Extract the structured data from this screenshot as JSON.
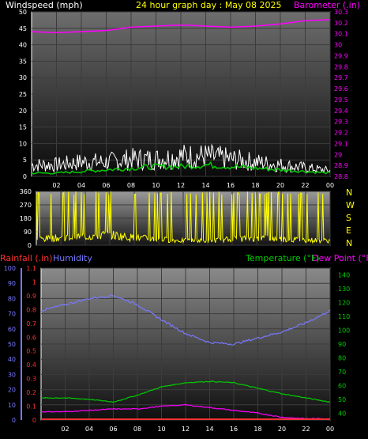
{
  "header": {
    "left_label": "Windspeed (mph)",
    "center_label": "24 hour graph day : May 08 2025",
    "right_label": "Barometer (.in)"
  },
  "colors": {
    "wind": "#ffffff",
    "wind_avg": "#00cc00",
    "barometer": "#ff00ff",
    "direction": "#ffff00",
    "humidity": "#7878ff",
    "temperature": "#00cc00",
    "dewpoint": "#ff00ff",
    "rainfall": "#ff3030",
    "header_center": "#ffff00",
    "axis_text": "#ffffff"
  },
  "bottom_header": {
    "rainfall_label": "Rainfall (.in)",
    "humidity_label": "Humidity",
    "temperature_label": "Temperature (°F)",
    "dewpoint_label": "Dew Point (°F)"
  },
  "direction_letters": [
    "N",
    "W",
    "S",
    "E",
    "N"
  ],
  "chart_data": [
    {
      "type": "line",
      "name": "wind-barometer",
      "x_tick_labels": [
        "02",
        "04",
        "06",
        "08",
        "10",
        "12",
        "14",
        "16",
        "18",
        "20",
        "22",
        "00"
      ],
      "y_left_ticks": [
        0,
        5,
        10,
        15,
        20,
        25,
        30,
        35,
        40,
        45,
        50
      ],
      "ylim_left": [
        0,
        50
      ],
      "y_right_ticks": [
        "28.8",
        "28.9",
        "29",
        "29.1",
        "29.2",
        "29.3",
        "29.4",
        "29.5",
        "29.6",
        "29.7",
        "29.8",
        "29.9",
        "30",
        "30.1",
        "30.2",
        "30.3"
      ],
      "ylim_right": [
        28.8,
        30.3
      ],
      "series": [
        {
          "axis": "right",
          "x": [
            0,
            2,
            4,
            6,
            8,
            10,
            12,
            14,
            16,
            18,
            20,
            22,
            24
          ],
          "values": [
            30.12,
            30.11,
            30.12,
            30.13,
            30.16,
            30.17,
            30.18,
            30.17,
            30.16,
            30.17,
            30.19,
            30.22,
            30.23
          ]
        },
        {
          "axis": "left",
          "x": [
            0,
            2,
            4,
            6,
            8,
            10,
            12,
            14,
            16,
            18,
            20,
            22,
            24
          ],
          "values": [
            4,
            4,
            5,
            5,
            6,
            6,
            7,
            7,
            6,
            5,
            4,
            3,
            2
          ]
        },
        {
          "axis": "left",
          "x": [
            0,
            2,
            4,
            6,
            8,
            10,
            12,
            14,
            16,
            18,
            20,
            22,
            24
          ],
          "values": [
            1,
            1,
            1.5,
            2,
            2.5,
            3,
            3,
            3.5,
            3,
            2.5,
            2,
            1.5,
            1
          ]
        }
      ]
    },
    {
      "type": "scatter",
      "name": "wind-direction",
      "y_left_ticks": [
        0,
        90,
        180,
        270,
        360
      ],
      "ylim": [
        0,
        360
      ],
      "x": [
        0,
        2,
        4,
        6,
        8,
        10,
        12,
        14,
        16,
        18,
        20,
        22,
        24
      ],
      "values": [
        40,
        50,
        60,
        70,
        50,
        40,
        30,
        30,
        40,
        50,
        40,
        35,
        30
      ]
    },
    {
      "type": "line",
      "name": "temp-humidity",
      "x_tick_labels": [
        "02",
        "04",
        "06",
        "08",
        "10",
        "12",
        "14",
        "16",
        "18",
        "20",
        "22",
        "00"
      ],
      "y_left_ticks": [
        0,
        10,
        20,
        30,
        40,
        50,
        60,
        70,
        80,
        90,
        100
      ],
      "ylim_left": [
        0,
        100
      ],
      "y_rain_ticks": [
        "0",
        "0.1",
        "0.2",
        "0.3",
        "0.4",
        "0.5",
        "0.6",
        "0.7",
        "0.8",
        "0.9",
        "1",
        "1.1"
      ],
      "ylim_rain": [
        0,
        1.1
      ],
      "y_right_ticks": [
        40,
        50,
        60,
        70,
        80,
        90,
        100,
        110,
        120,
        130,
        140
      ],
      "ylim_right": [
        35,
        145
      ],
      "series": [
        {
          "axis": "left",
          "x": [
            0,
            2,
            4,
            6,
            8,
            10,
            12,
            14,
            16,
            18,
            20,
            22,
            24
          ],
          "values": [
            72,
            76,
            80,
            82,
            76,
            66,
            57,
            51,
            50,
            54,
            58,
            64,
            72
          ]
        },
        {
          "axis": "right",
          "x": [
            0,
            2,
            4,
            6,
            8,
            10,
            12,
            14,
            16,
            18,
            20,
            22,
            24
          ],
          "values": [
            51,
            51,
            50,
            48,
            53,
            59,
            62,
            63,
            62,
            58,
            54,
            51,
            48
          ]
        },
        {
          "axis": "right",
          "x": [
            0,
            2,
            4,
            6,
            8,
            10,
            12,
            14,
            16,
            18,
            20,
            22,
            24
          ],
          "values": [
            41,
            41,
            42,
            43,
            43,
            45,
            46,
            44,
            42,
            40,
            37,
            36,
            36
          ]
        },
        {
          "axis": "rain",
          "x": [
            0,
            2,
            4,
            6,
            8,
            10,
            12,
            14,
            16,
            18,
            20,
            22,
            24
          ],
          "values": [
            0,
            0,
            0,
            0,
            0,
            0,
            0,
            0,
            0,
            0,
            0,
            0,
            0
          ]
        }
      ]
    }
  ]
}
